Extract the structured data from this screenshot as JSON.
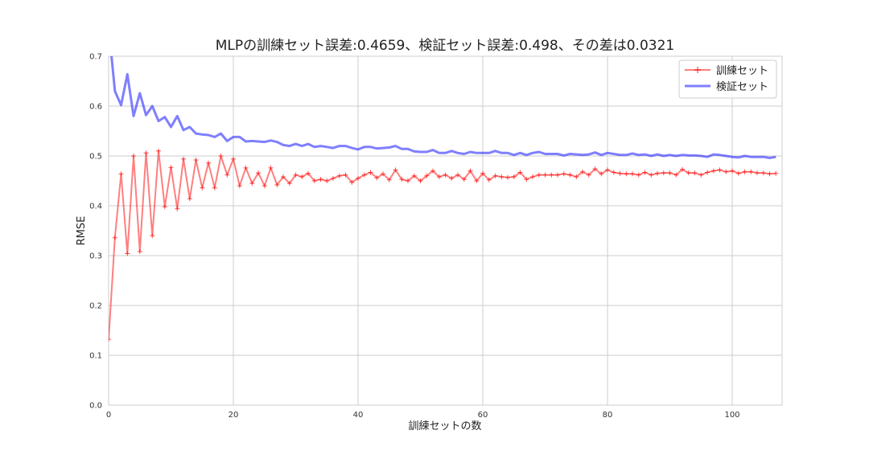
{
  "chart_data": {
    "type": "line",
    "title": "MLPの訓練セット誤差:0.4659、検証セット誤差:0.498、その差は0.0321",
    "xlabel": "訓練セットの数",
    "ylabel": "RMSE",
    "xlim": [
      0,
      108
    ],
    "ylim": [
      0.0,
      0.7
    ],
    "xticks": [
      0,
      20,
      40,
      60,
      80,
      100
    ],
    "yticks": [
      0.0,
      0.1,
      0.2,
      0.3,
      0.4,
      0.5,
      0.6,
      0.7
    ],
    "grid": true,
    "legend_position": "top-right",
    "series": [
      {
        "name": "訓練セット",
        "color": "#ff0000",
        "style": "line-with-plus-markers",
        "x": [
          0,
          1,
          2,
          3,
          4,
          5,
          6,
          7,
          8,
          9,
          10,
          11,
          12,
          13,
          14,
          15,
          16,
          17,
          18,
          19,
          20,
          21,
          22,
          23,
          24,
          25,
          26,
          27,
          28,
          29,
          30,
          31,
          32,
          33,
          34,
          35,
          36,
          37,
          38,
          39,
          40,
          41,
          42,
          43,
          44,
          45,
          46,
          47,
          48,
          49,
          50,
          51,
          52,
          53,
          54,
          55,
          56,
          57,
          58,
          59,
          60,
          61,
          62,
          63,
          64,
          65,
          66,
          67,
          68,
          69,
          70,
          71,
          72,
          73,
          74,
          75,
          76,
          77,
          78,
          79,
          80,
          81,
          82,
          83,
          84,
          85,
          86,
          87,
          88,
          89,
          90,
          91,
          92,
          93,
          94,
          95,
          96,
          97,
          98,
          99,
          100,
          101,
          102,
          103,
          104,
          105,
          106,
          107
        ],
        "y": [
          0.132,
          0.336,
          0.464,
          0.304,
          0.5,
          0.308,
          0.506,
          0.34,
          0.51,
          0.398,
          0.477,
          0.394,
          0.494,
          0.414,
          0.492,
          0.436,
          0.486,
          0.436,
          0.5,
          0.462,
          0.494,
          0.44,
          0.476,
          0.445,
          0.466,
          0.44,
          0.476,
          0.442,
          0.458,
          0.445,
          0.462,
          0.458,
          0.465,
          0.45,
          0.453,
          0.45,
          0.455,
          0.46,
          0.462,
          0.447,
          0.455,
          0.462,
          0.467,
          0.456,
          0.464,
          0.452,
          0.472,
          0.453,
          0.45,
          0.46,
          0.45,
          0.46,
          0.47,
          0.458,
          0.462,
          0.455,
          0.462,
          0.453,
          0.47,
          0.45,
          0.465,
          0.452,
          0.46,
          0.458,
          0.457,
          0.458,
          0.467,
          0.453,
          0.458,
          0.462,
          0.462,
          0.462,
          0.462,
          0.464,
          0.462,
          0.458,
          0.468,
          0.462,
          0.474,
          0.464,
          0.472,
          0.467,
          0.465,
          0.464,
          0.464,
          0.462,
          0.467,
          0.462,
          0.465,
          0.466,
          0.466,
          0.462,
          0.473,
          0.466,
          0.466,
          0.462,
          0.467,
          0.47,
          0.472,
          0.468,
          0.47,
          0.465,
          0.468,
          0.468,
          0.466,
          0.466,
          0.464,
          0.465
        ]
      },
      {
        "name": "検証セット",
        "color": "#0000ff",
        "style": "thick-line",
        "x": [
          0,
          1,
          2,
          3,
          4,
          5,
          6,
          7,
          8,
          9,
          10,
          11,
          12,
          13,
          14,
          15,
          16,
          17,
          18,
          19,
          20,
          21,
          22,
          23,
          24,
          25,
          26,
          27,
          28,
          29,
          30,
          31,
          32,
          33,
          34,
          35,
          36,
          37,
          38,
          39,
          40,
          41,
          42,
          43,
          44,
          45,
          46,
          47,
          48,
          49,
          50,
          51,
          52,
          53,
          54,
          55,
          56,
          57,
          58,
          59,
          60,
          61,
          62,
          63,
          64,
          65,
          66,
          67,
          68,
          69,
          70,
          71,
          72,
          73,
          74,
          75,
          76,
          77,
          78,
          79,
          80,
          81,
          82,
          83,
          84,
          85,
          86,
          87,
          88,
          89,
          90,
          91,
          92,
          93,
          94,
          95,
          96,
          97,
          98,
          99,
          100,
          101,
          102,
          103,
          104,
          105,
          106,
          107
        ],
        "y": [
          0.76,
          0.63,
          0.602,
          0.664,
          0.58,
          0.626,
          0.582,
          0.6,
          0.57,
          0.578,
          0.558,
          0.58,
          0.552,
          0.558,
          0.545,
          0.543,
          0.542,
          0.538,
          0.545,
          0.53,
          0.538,
          0.538,
          0.529,
          0.53,
          0.529,
          0.528,
          0.531,
          0.528,
          0.522,
          0.52,
          0.524,
          0.52,
          0.524,
          0.518,
          0.52,
          0.518,
          0.516,
          0.52,
          0.52,
          0.516,
          0.513,
          0.518,
          0.518,
          0.515,
          0.516,
          0.517,
          0.52,
          0.514,
          0.514,
          0.509,
          0.508,
          0.508,
          0.512,
          0.506,
          0.506,
          0.51,
          0.506,
          0.504,
          0.508,
          0.506,
          0.506,
          0.506,
          0.51,
          0.506,
          0.506,
          0.502,
          0.506,
          0.502,
          0.506,
          0.508,
          0.504,
          0.504,
          0.504,
          0.501,
          0.504,
          0.503,
          0.502,
          0.503,
          0.507,
          0.502,
          0.506,
          0.504,
          0.502,
          0.502,
          0.505,
          0.502,
          0.503,
          0.5,
          0.503,
          0.5,
          0.502,
          0.5,
          0.502,
          0.501,
          0.501,
          0.5,
          0.498,
          0.503,
          0.502,
          0.5,
          0.498,
          0.497,
          0.5,
          0.498,
          0.498,
          0.498,
          0.496,
          0.498
        ]
      }
    ]
  }
}
